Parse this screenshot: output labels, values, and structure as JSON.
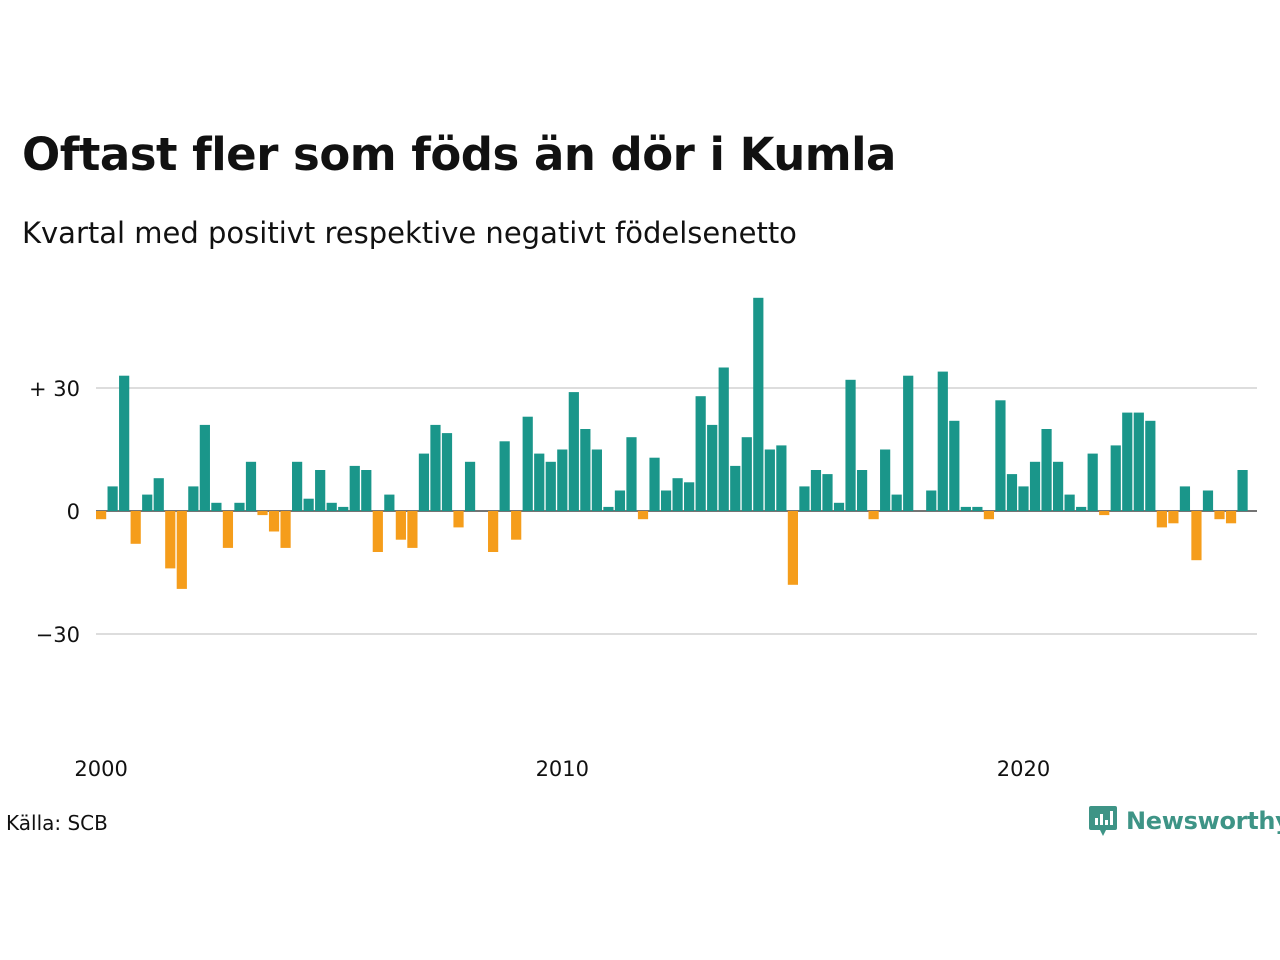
{
  "title": "Oftast fler som föds än dör i Kumla",
  "subtitle": "Kvartal med positivt respektive negativt födelsenetto",
  "source": "Källa: SCB",
  "brand": {
    "name": "Newsworthy",
    "icon": "newsworthy-logo-icon",
    "color": "#3e9486"
  },
  "colors": {
    "positive": "#1a968a",
    "negative": "#f59d1b",
    "grid": "#dddddd"
  },
  "chart_data": {
    "type": "bar",
    "ylim": [
      -47,
      54
    ],
    "yticks": [
      {
        "value": 30,
        "label": "+ 30"
      },
      {
        "value": 0,
        "label": "0"
      },
      {
        "value": -30,
        "label": "−30"
      }
    ],
    "xticks": [
      {
        "index": 0,
        "label": "2000"
      },
      {
        "index": 40,
        "label": "2010"
      },
      {
        "index": 80,
        "label": "2020"
      }
    ],
    "grid": true,
    "start": "2000 Q1",
    "values": [
      -2,
      6,
      33,
      -8,
      4,
      8,
      -14,
      -19,
      6,
      21,
      2,
      -9,
      2,
      12,
      -1,
      -5,
      -9,
      12,
      3,
      10,
      2,
      1,
      11,
      10,
      -10,
      4,
      -7,
      -9,
      14,
      21,
      19,
      -4,
      12,
      0,
      -10,
      17,
      -7,
      23,
      14,
      12,
      15,
      29,
      20,
      15,
      1,
      5,
      18,
      -2,
      13,
      5,
      8,
      7,
      28,
      21,
      35,
      11,
      18,
      52,
      15,
      16,
      -18,
      6,
      10,
      9,
      2,
      32,
      10,
      -2,
      15,
      4,
      33,
      0,
      5,
      34,
      22,
      1,
      1,
      -2,
      27,
      9,
      6,
      12,
      20,
      12,
      4,
      1,
      14,
      -1,
      16,
      24,
      24,
      22,
      -4,
      -3,
      6,
      -12,
      5,
      -2,
      -3,
      10
    ]
  }
}
